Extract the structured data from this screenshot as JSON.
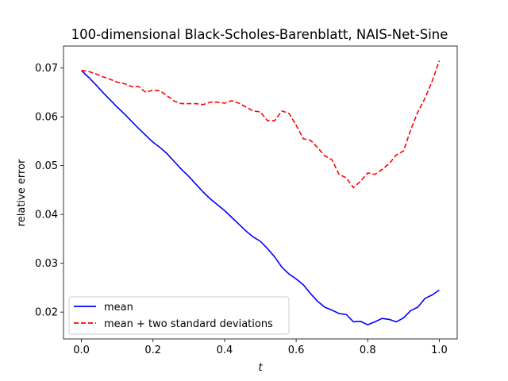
{
  "chart_data": {
    "type": "line",
    "title": "100-dimensional Black-Scholes-Barenblatt, NAIS-Net-Sine",
    "xlabel": "t",
    "ylabel": "relative error",
    "xlim": [
      -0.05,
      1.05
    ],
    "ylim": [
      0.0145,
      0.0745
    ],
    "xticks": [
      0.0,
      0.2,
      0.4,
      0.6,
      0.8,
      1.0
    ],
    "xtick_labels": [
      "0.0",
      "0.2",
      "0.4",
      "0.6",
      "0.8",
      "1.0"
    ],
    "yticks": [
      0.02,
      0.03,
      0.04,
      0.05,
      0.06,
      0.07
    ],
    "ytick_labels": [
      "0.02",
      "0.03",
      "0.04",
      "0.05",
      "0.06",
      "0.07"
    ],
    "grid": false,
    "legend_position": "lower-left",
    "x": [
      0.0,
      0.02,
      0.04,
      0.06,
      0.08,
      0.1,
      0.12,
      0.14,
      0.16,
      0.18,
      0.2,
      0.22,
      0.24,
      0.26,
      0.28,
      0.3,
      0.32,
      0.34,
      0.36,
      0.38,
      0.4,
      0.42,
      0.44,
      0.46,
      0.48,
      0.5,
      0.52,
      0.54,
      0.56,
      0.58,
      0.6,
      0.62,
      0.64,
      0.66,
      0.68,
      0.7,
      0.72,
      0.74,
      0.76,
      0.78,
      0.8,
      0.82,
      0.84,
      0.86,
      0.88,
      0.9,
      0.92,
      0.94,
      0.96,
      0.98,
      1.0
    ],
    "series": [
      {
        "name": "mean",
        "color": "#0000ff",
        "style": "solid",
        "values": [
          0.0695,
          0.0681,
          0.0666,
          0.065,
          0.0635,
          0.062,
          0.0606,
          0.0591,
          0.0576,
          0.0562,
          0.0548,
          0.0537,
          0.0524,
          0.0508,
          0.0492,
          0.0478,
          0.0462,
          0.0446,
          0.0432,
          0.042,
          0.0408,
          0.0394,
          0.038,
          0.0366,
          0.0354,
          0.0345,
          0.033,
          0.0313,
          0.0292,
          0.0278,
          0.0268,
          0.0256,
          0.0238,
          0.0222,
          0.021,
          0.0204,
          0.0197,
          0.0195,
          0.018,
          0.0181,
          0.0174,
          0.018,
          0.0187,
          0.0185,
          0.018,
          0.0188,
          0.0203,
          0.021,
          0.0228,
          0.0235,
          0.0245
        ]
      },
      {
        "name": "mean + two standard deviations",
        "color": "#ff0000",
        "style": "dashed",
        "values": [
          0.0695,
          0.0693,
          0.0688,
          0.0682,
          0.0677,
          0.0671,
          0.0668,
          0.0662,
          0.0662,
          0.065,
          0.0655,
          0.0653,
          0.0643,
          0.0632,
          0.0627,
          0.0627,
          0.0627,
          0.0625,
          0.063,
          0.063,
          0.0628,
          0.0633,
          0.0628,
          0.062,
          0.0612,
          0.061,
          0.0592,
          0.0592,
          0.0612,
          0.0607,
          0.0583,
          0.0555,
          0.0552,
          0.0537,
          0.052,
          0.0512,
          0.0482,
          0.0475,
          0.0455,
          0.0468,
          0.0485,
          0.0482,
          0.0492,
          0.0504,
          0.0522,
          0.053,
          0.0573,
          0.061,
          0.0638,
          0.0673,
          0.0715
        ]
      }
    ]
  }
}
